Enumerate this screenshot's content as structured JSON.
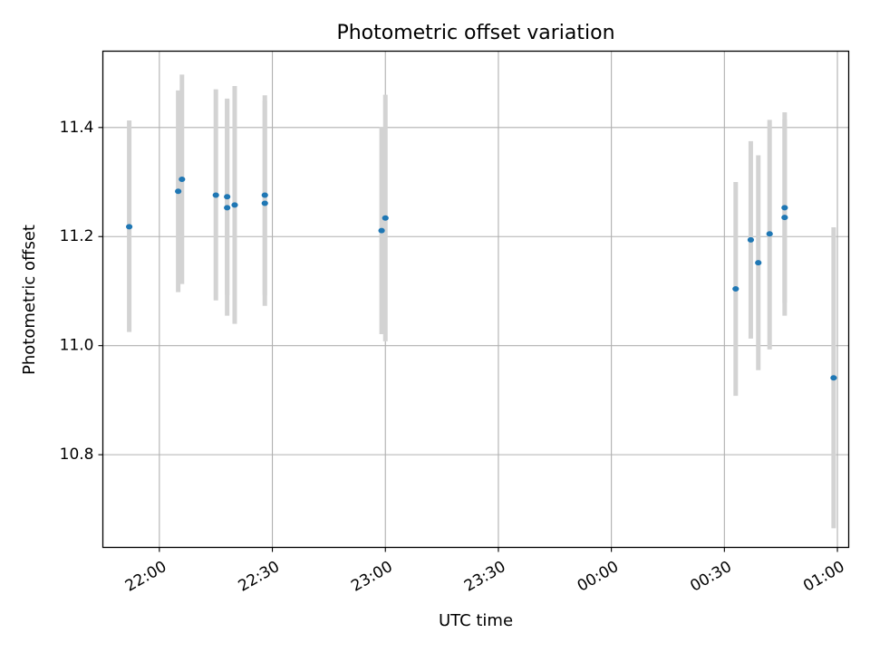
{
  "chart_data": {
    "type": "scatter",
    "title": "Photometric offset variation",
    "xlabel": "UTC time",
    "ylabel": "Photometric offset",
    "x_unit": "UTC time (HH:MM), spanning midnight",
    "xlim": [
      "21:45",
      "01:03"
    ],
    "ylim": [
      10.63,
      11.54
    ],
    "x_ticks": [
      "22:00",
      "22:30",
      "23:00",
      "23:30",
      "00:00",
      "00:30",
      "01:00"
    ],
    "y_ticks": [
      10.8,
      11.0,
      11.2,
      11.4
    ],
    "grid": true,
    "point_color": "#1f77b4",
    "errorbar_color": "#d3d3d3",
    "series": [
      {
        "points": [
          {
            "x": "21:52",
            "y": 11.218,
            "ymin": 11.025,
            "ymax": 11.413
          },
          {
            "x": "22:05",
            "y": 11.283,
            "ymin": 11.098,
            "ymax": 11.468
          },
          {
            "x": "22:06",
            "y": 11.305,
            "ymin": 11.113,
            "ymax": 11.497
          },
          {
            "x": "22:15",
            "y": 11.276,
            "ymin": 11.083,
            "ymax": 11.47
          },
          {
            "x": "22:18",
            "y": 11.253,
            "ymin": 11.055,
            "ymax": 11.451
          },
          {
            "x": "22:18",
            "y": 11.273,
            "ymin": 11.093,
            "ymax": 11.453
          },
          {
            "x": "22:20",
            "y": 11.258,
            "ymin": 11.04,
            "ymax": 11.476
          },
          {
            "x": "22:28",
            "y": 11.276,
            "ymin": 11.093,
            "ymax": 11.459
          },
          {
            "x": "22:28",
            "y": 11.261,
            "ymin": 11.073,
            "ymax": 11.449
          },
          {
            "x": "22:59",
            "y": 11.211,
            "ymin": 11.021,
            "ymax": 11.401
          },
          {
            "x": "23:00",
            "y": 11.234,
            "ymin": 11.008,
            "ymax": 11.46
          },
          {
            "x": "00:33",
            "y": 11.104,
            "ymin": 10.908,
            "ymax": 11.3
          },
          {
            "x": "00:37",
            "y": 11.194,
            "ymin": 11.013,
            "ymax": 11.375
          },
          {
            "x": "00:39",
            "y": 11.152,
            "ymin": 10.955,
            "ymax": 11.349
          },
          {
            "x": "00:42",
            "y": 11.205,
            "ymin": 10.993,
            "ymax": 11.414
          },
          {
            "x": "00:46",
            "y": 11.235,
            "ymin": 11.055,
            "ymax": 11.415
          },
          {
            "x": "00:46",
            "y": 11.253,
            "ymin": 11.078,
            "ymax": 11.428
          },
          {
            "x": "00:59",
            "y": 10.941,
            "ymin": 10.665,
            "ymax": 11.217
          }
        ]
      }
    ]
  }
}
